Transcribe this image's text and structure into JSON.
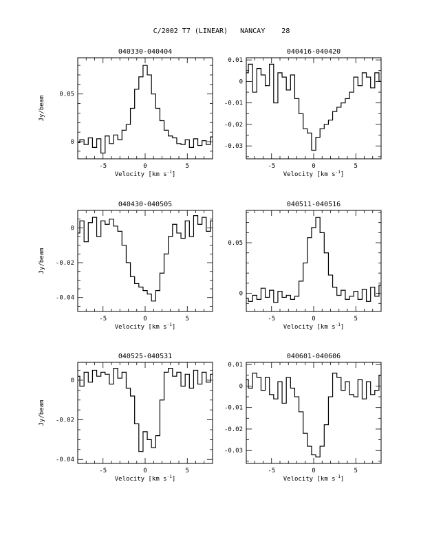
{
  "page_title": "C/2002 T7 (LINEAR)   NANCAY    28",
  "chart_data": [
    {
      "type": "line",
      "title": "040330-040404",
      "xlabel": "Velocity [km s",
      "xlabel_sup": "-1",
      "xlabel_close": "]",
      "ylabel": "Jy/beam",
      "xlim": [
        -8,
        8
      ],
      "ylim": [
        -0.018,
        0.088
      ],
      "xticks": [
        -5,
        0,
        5
      ],
      "yticks": [
        0,
        0.05
      ],
      "ytick_labels": [
        "0",
        "0.05"
      ],
      "series": [
        {
          "x": [
            -8,
            -7.5,
            -7,
            -6.5,
            -6,
            -5.5,
            -5,
            -4.5,
            -4,
            -3.5,
            -3,
            -2.5,
            -2,
            -1.5,
            -1,
            -0.5,
            0,
            0.5,
            1,
            1.5,
            2,
            2.5,
            3,
            3.5,
            4,
            4.5,
            5,
            5.5,
            6,
            6.5,
            7,
            7.5,
            8
          ],
          "values": [
            -0.001,
            0.002,
            -0.003,
            0.004,
            -0.006,
            0.003,
            -0.012,
            0.006,
            -0.002,
            0.007,
            0.002,
            0.012,
            0.018,
            0.035,
            0.055,
            0.068,
            0.08,
            0.07,
            0.05,
            0.035,
            0.022,
            0.012,
            0.006,
            0.004,
            -0.002,
            -0.003,
            0.002,
            -0.006,
            0.003,
            -0.004,
            0.001,
            -0.003,
            0.005
          ]
        }
      ]
    },
    {
      "type": "line",
      "title": "040416-040420",
      "xlabel": "Velocity [km s",
      "xlabel_sup": "-1",
      "xlabel_close": "]",
      "ylabel": "",
      "xlim": [
        -8,
        8
      ],
      "ylim": [
        -0.036,
        0.011
      ],
      "xticks": [
        -5,
        0,
        5
      ],
      "yticks": [
        0.01,
        0,
        -0.01,
        -0.02,
        -0.03
      ],
      "ytick_labels": [
        "0.01",
        "0",
        "-0.01",
        "-0.02",
        "-0.03"
      ],
      "series": [
        {
          "x": [
            -8,
            -7.5,
            -7,
            -6.5,
            -6,
            -5.5,
            -5,
            -4.5,
            -4,
            -3.5,
            -3,
            -2.5,
            -2,
            -1.5,
            -1,
            -0.5,
            0,
            0.5,
            1,
            1.5,
            2,
            2.5,
            3,
            3.5,
            4,
            4.5,
            5,
            5.5,
            6,
            6.5,
            7,
            7.5,
            8
          ],
          "values": [
            0.004,
            0.008,
            -0.005,
            0.006,
            0.003,
            -0.002,
            0.008,
            -0.01,
            0.004,
            0.002,
            -0.004,
            0.003,
            -0.008,
            -0.015,
            -0.022,
            -0.024,
            -0.032,
            -0.026,
            -0.022,
            -0.02,
            -0.018,
            -0.014,
            -0.012,
            -0.01,
            -0.008,
            -0.005,
            0.002,
            -0.002,
            0.004,
            0.002,
            -0.003,
            0.004,
            0.0
          ]
        }
      ]
    },
    {
      "type": "line",
      "title": "040430-040505",
      "xlabel": "Velocity [km s",
      "xlabel_sup": "-1",
      "xlabel_close": "]",
      "ylabel": "Jy/beam",
      "xlim": [
        -8,
        8
      ],
      "ylim": [
        -0.048,
        0.01
      ],
      "xticks": [
        -5,
        0,
        5
      ],
      "yticks": [
        0,
        -0.02,
        -0.04
      ],
      "ytick_labels": [
        "0",
        "-0.02",
        "-0.04"
      ],
      "series": [
        {
          "x": [
            -8,
            -7.5,
            -7,
            -6.5,
            -6,
            -5.5,
            -5,
            -4.5,
            -4,
            -3.5,
            -3,
            -2.5,
            -2,
            -1.5,
            -1,
            -0.5,
            0,
            0.5,
            1,
            1.5,
            2,
            2.5,
            3,
            3.5,
            4,
            4.5,
            5,
            5.5,
            6,
            6.5,
            7,
            7.5,
            8
          ],
          "values": [
            -0.003,
            0.004,
            -0.008,
            0.003,
            0.006,
            -0.005,
            0.004,
            0.002,
            0.005,
            0.001,
            -0.002,
            -0.01,
            -0.02,
            -0.028,
            -0.032,
            -0.034,
            -0.036,
            -0.038,
            -0.042,
            -0.036,
            -0.026,
            -0.015,
            -0.005,
            0.002,
            -0.003,
            -0.006,
            0.004,
            -0.005,
            0.007,
            0.002,
            0.006,
            -0.002,
            0.004
          ]
        }
      ]
    },
    {
      "type": "line",
      "title": "040511-040516",
      "xlabel": "Velocity [km s",
      "xlabel_sup": "-1",
      "xlabel_close": "]",
      "ylabel": "",
      "xlim": [
        -8,
        8
      ],
      "ylim": [
        -0.018,
        0.082
      ],
      "xticks": [
        -5,
        0,
        5
      ],
      "yticks": [
        0,
        0.05
      ],
      "ytick_labels": [
        "0",
        "0.05"
      ],
      "series": [
        {
          "x": [
            -8,
            -7.5,
            -7,
            -6.5,
            -6,
            -5.5,
            -5,
            -4.5,
            -4,
            -3.5,
            -3,
            -2.5,
            -2,
            -1.5,
            -1,
            -0.5,
            0,
            0.5,
            1,
            1.5,
            2,
            2.5,
            3,
            3.5,
            4,
            4.5,
            5,
            5.5,
            6,
            6.5,
            7,
            7.5,
            8
          ],
          "values": [
            -0.005,
            -0.008,
            -0.002,
            -0.006,
            0.005,
            -0.004,
            0.003,
            -0.009,
            0.002,
            -0.004,
            -0.002,
            -0.006,
            -0.003,
            0.012,
            0.03,
            0.055,
            0.065,
            0.075,
            0.06,
            0.04,
            0.018,
            0.006,
            -0.002,
            0.003,
            -0.006,
            -0.003,
            0.002,
            -0.006,
            0.004,
            -0.008,
            0.006,
            -0.003,
            0.008
          ]
        }
      ]
    },
    {
      "type": "line",
      "title": "040525-040531",
      "xlabel": "Velocity [km s",
      "xlabel_sup": "-1",
      "xlabel_close": "]",
      "ylabel": "Jy/beam",
      "xlim": [
        -8,
        8
      ],
      "ylim": [
        -0.042,
        0.009
      ],
      "xticks": [
        -5,
        0,
        5
      ],
      "yticks": [
        0,
        -0.02,
        -0.04
      ],
      "ytick_labels": [
        "0",
        "-0.02",
        "-0.04"
      ],
      "series": [
        {
          "x": [
            -8,
            -7.5,
            -7,
            -6.5,
            -6,
            -5.5,
            -5,
            -4.5,
            -4,
            -3.5,
            -3,
            -2.5,
            -2,
            -1.5,
            -1,
            -0.5,
            0,
            0.5,
            1,
            1.5,
            2,
            2.5,
            3,
            3.5,
            4,
            4.5,
            5,
            5.5,
            6,
            6.5,
            7,
            7.5,
            8
          ],
          "values": [
            0.002,
            -0.003,
            0.004,
            -0.001,
            0.005,
            0.002,
            0.004,
            0.003,
            -0.002,
            0.006,
            0.001,
            0.004,
            -0.004,
            -0.008,
            -0.022,
            -0.036,
            -0.026,
            -0.03,
            -0.034,
            -0.028,
            -0.01,
            0.004,
            0.006,
            0.002,
            0.004,
            -0.003,
            0.003,
            -0.004,
            0.005,
            -0.002,
            0.004,
            -0.001,
            0.003
          ]
        }
      ]
    },
    {
      "type": "line",
      "title": "040601-040606",
      "xlabel": "Velocity [km s",
      "xlabel_sup": "-1",
      "xlabel_close": "]",
      "ylabel": "",
      "xlim": [
        -8,
        8
      ],
      "ylim": [
        -0.036,
        0.011
      ],
      "xticks": [
        -5,
        0,
        5
      ],
      "yticks": [
        0.01,
        0,
        -0.01,
        -0.02,
        -0.03
      ],
      "ytick_labels": [
        "0.01",
        "0",
        "-0.01",
        "-0.02",
        "-0.03"
      ],
      "series": [
        {
          "x": [
            -8,
            -7.5,
            -7,
            -6.5,
            -6,
            -5.5,
            -5,
            -4.5,
            -4,
            -3.5,
            -3,
            -2.5,
            -2,
            -1.5,
            -1,
            -0.5,
            0,
            0.5,
            1,
            1.5,
            2,
            2.5,
            3,
            3.5,
            4,
            4.5,
            5,
            5.5,
            6,
            6.5,
            7,
            7.5,
            8
          ],
          "values": [
            0.003,
            -0.001,
            0.006,
            0.004,
            -0.002,
            0.004,
            -0.004,
            -0.006,
            0.002,
            -0.008,
            0.004,
            -0.001,
            -0.005,
            -0.012,
            -0.022,
            -0.028,
            -0.032,
            -0.033,
            -0.028,
            -0.018,
            -0.005,
            0.006,
            0.004,
            -0.002,
            0.002,
            -0.004,
            -0.005,
            0.003,
            -0.006,
            0.002,
            -0.004,
            -0.002,
            0.005
          ]
        }
      ]
    }
  ]
}
